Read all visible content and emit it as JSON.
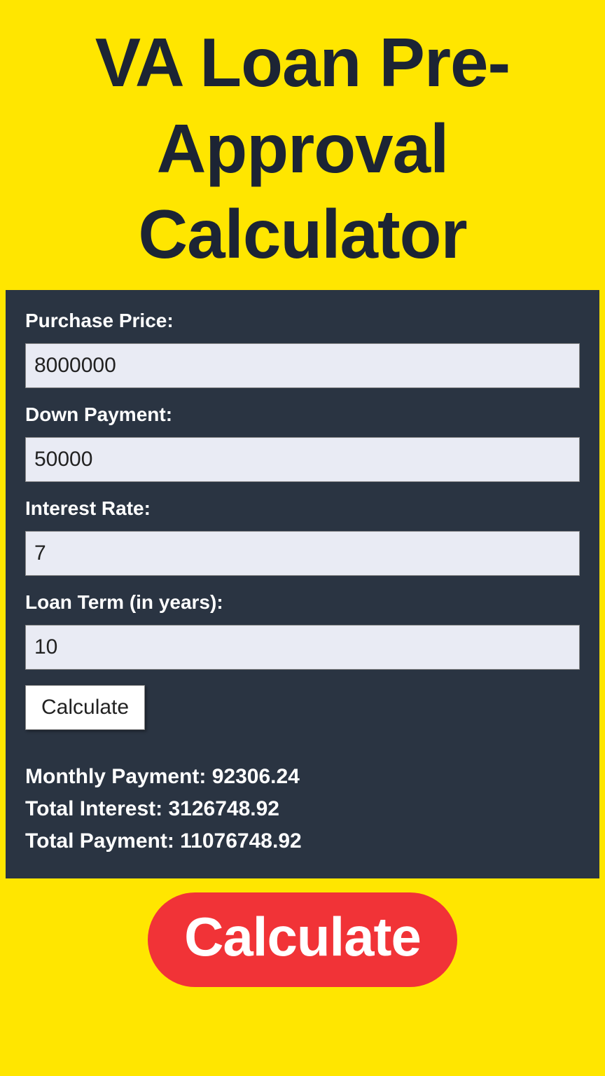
{
  "header": {
    "title": "VA Loan Pre-Approval Calculator"
  },
  "form": {
    "purchase_price": {
      "label": "Purchase Price:",
      "value": "8000000"
    },
    "down_payment": {
      "label": "Down Payment:",
      "value": "50000"
    },
    "interest_rate": {
      "label": "Interest Rate:",
      "value": "7"
    },
    "loan_term": {
      "label": "Loan Term (in years):",
      "value": "10"
    },
    "calculate_label": "Calculate"
  },
  "results": {
    "monthly_payment": {
      "label": "Monthly Payment: ",
      "value": "92306.24"
    },
    "total_interest": {
      "label": "Total Interest: ",
      "value": "3126748.92"
    },
    "total_payment": {
      "label": "Total Payment: ",
      "value": "11076748.92"
    }
  },
  "cta": {
    "label": "Calculate"
  },
  "colors": {
    "page_bg": "#ffe600",
    "title_color": "#1c2434",
    "panel_bg": "#2a3442",
    "panel_text": "#ffffff",
    "input_bg": "#e9ebf4",
    "button_bg": "#ffffff",
    "cta_bg": "#f13337",
    "cta_text": "#ffffff"
  }
}
